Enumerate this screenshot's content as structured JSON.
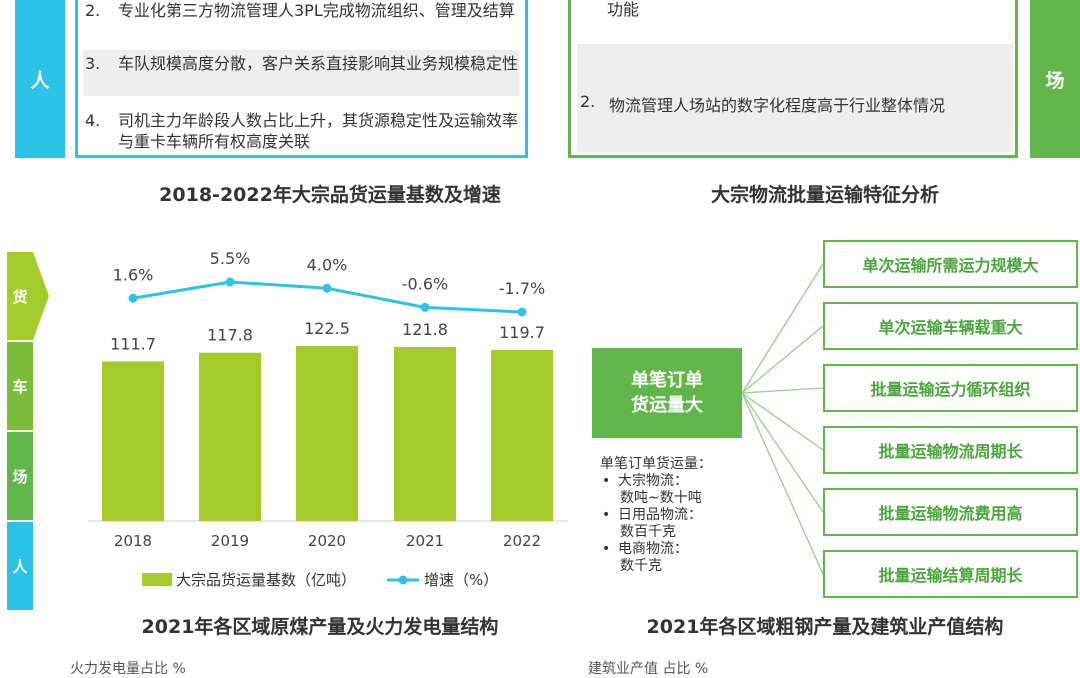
{
  "top_left": {
    "tab": "人",
    "items": [
      {
        "num": "2.",
        "text": "专业化第三方物流管理人3PL完成物流组织、管理及结算"
      },
      {
        "num": "3.",
        "text": "车队规模高度分散，客户关系直接影响其业务规模稳定性"
      },
      {
        "num": "4.",
        "text": "司机主力年龄段人数占比上升，其货源稳定性及运输效率与重卡车辆所有权高度关联"
      }
    ]
  },
  "top_right": {
    "tab": "场",
    "line_cut": "功能",
    "item": {
      "num": "2.",
      "text": "物流管理人场站的数字化程度高于行业整体情况"
    }
  },
  "titles": {
    "chart_left": "2018-2022年大宗品货运量基数及增速",
    "chart_right": "大宗物流批量运输特征分析",
    "bottom_left": "2021年各区域原煤产量及火力发电量结构",
    "bottom_right": "2021年各区域粗钢产量及建筑业产值结构"
  },
  "side_tabs": [
    "货",
    "车",
    "场",
    "人"
  ],
  "colors": {
    "blue": "#2cc3e6",
    "green": "#62b549",
    "bar": "#a3cc2b",
    "line": "#2cc3e6"
  },
  "chart_data": {
    "type": "bar",
    "categories": [
      "2018",
      "2019",
      "2020",
      "2021",
      "2022"
    ],
    "series": [
      {
        "name": "大宗品货运量基数（亿吨）",
        "type": "bar",
        "values": [
          111.7,
          117.8,
          122.5,
          121.8,
          119.7
        ]
      },
      {
        "name": "增速（%）",
        "type": "line",
        "values": [
          1.6,
          5.5,
          4.0,
          -0.6,
          -1.7
        ]
      }
    ],
    "value_labels": [
      "111.7",
      "117.8",
      "122.5",
      "121.8",
      "119.7"
    ],
    "pct_labels": [
      "1.6%",
      "5.5%",
      "4.0%",
      "-0.6%",
      "-1.7%"
    ],
    "legend": "bottom"
  },
  "diagram": {
    "center": [
      "单笔订单",
      "货运量大"
    ],
    "features": [
      "单次运输所需运力规模大",
      "单次运输车辆载重大",
      "批量运输运力循环组织",
      "批量运输物流周期长",
      "批量运输物流费用高",
      "批量运输结算周期长"
    ],
    "note": {
      "head": "单笔订单货运量：",
      "items": [
        {
          "label": "大宗物流：",
          "value": "数吨~数十吨"
        },
        {
          "label": "日用品物流：",
          "value": "数百千克"
        },
        {
          "label": "电商物流：",
          "value": "数千克"
        }
      ]
    }
  },
  "bottom_cut": {
    "left": "火力发电量占比 %",
    "right": "建筑业产值 占比 %"
  }
}
